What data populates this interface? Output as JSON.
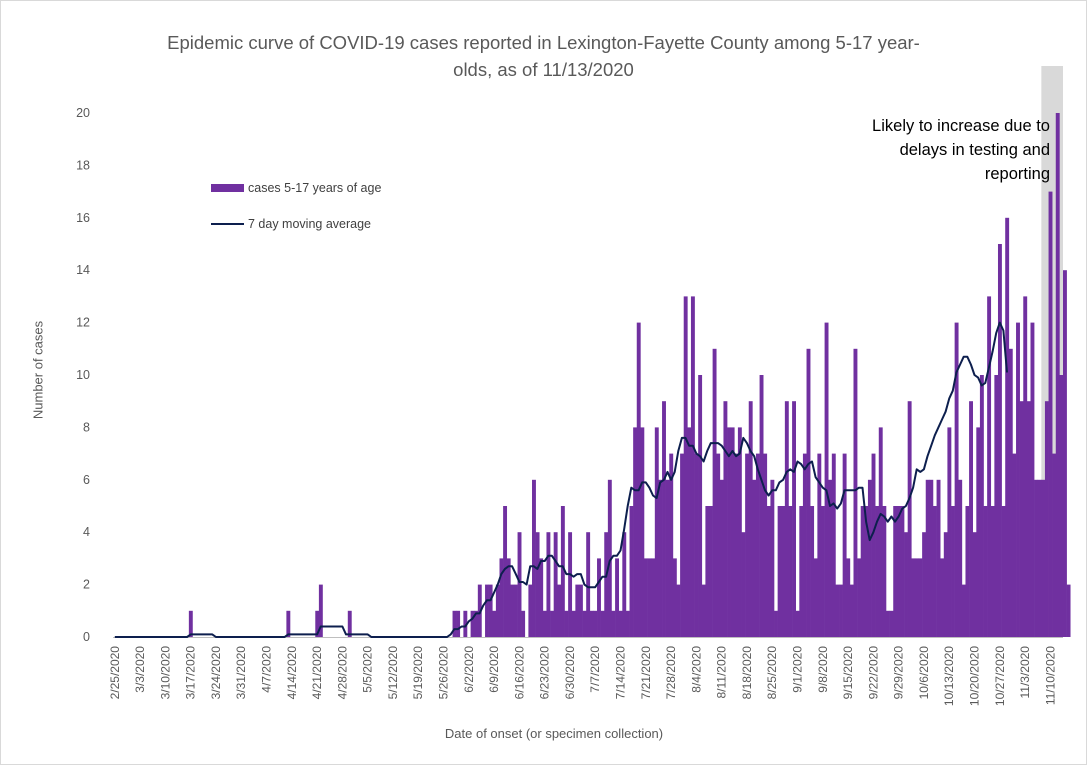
{
  "chart_data": {
    "type": "bar",
    "title_lines": [
      "Epidemic curve of COVID-19 cases reported in Lexington-Fayette County among 5-17 year-",
      "olds, as of 11/13/2020"
    ],
    "xlabel": "Date of onset (or specimen collection)",
    "ylabel": "Number of cases",
    "ylim": [
      0,
      20
    ],
    "y_ticks": [
      0,
      2,
      4,
      6,
      8,
      10,
      12,
      14,
      16,
      18,
      20
    ],
    "x_tick_labels": [
      "2/25/2020",
      "3/3/2020",
      "3/10/2020",
      "3/17/2020",
      "3/24/2020",
      "3/31/2020",
      "4/7/2020",
      "4/14/2020",
      "4/21/2020",
      "4/28/2020",
      "5/5/2020",
      "5/12/2020",
      "5/19/2020",
      "5/26/2020",
      "6/2/2020",
      "6/9/2020",
      "6/16/2020",
      "6/23/2020",
      "6/30/2020",
      "7/7/2020",
      "7/14/2020",
      "7/21/2020",
      "7/28/2020",
      "8/4/2020",
      "8/11/2020",
      "8/18/2020",
      "8/25/2020",
      "9/1/2020",
      "9/8/2020",
      "9/15/2020",
      "9/22/2020",
      "9/29/2020",
      "10/6/2020",
      "10/13/2020",
      "10/20/2020",
      "10/27/2020",
      "11/3/2020",
      "11/10/2020"
    ],
    "start_date": "2/25/2020",
    "end_date": "11/13/2020",
    "series": [
      {
        "name": "cases 5-17 years of age",
        "type": "bar",
        "color": "#7030a0",
        "values": [
          0,
          0,
          0,
          0,
          0,
          0,
          0,
          0,
          0,
          0,
          0,
          0,
          0,
          0,
          0,
          0,
          0,
          0,
          0,
          0,
          0,
          1,
          0,
          0,
          0,
          0,
          0,
          0,
          0,
          0,
          0,
          0,
          0,
          0,
          0,
          0,
          0,
          0,
          0,
          0,
          0,
          0,
          0,
          0,
          0,
          0,
          0,
          0,
          1,
          0,
          0,
          0,
          0,
          0,
          0,
          0,
          1,
          2,
          0,
          0,
          0,
          0,
          0,
          0,
          0,
          1,
          0,
          0,
          0,
          0,
          0,
          0,
          0,
          0,
          0,
          0,
          0,
          0,
          0,
          0,
          0,
          0,
          0,
          0,
          0,
          0,
          0,
          0,
          0,
          0,
          0,
          0,
          0,
          0,
          1,
          1,
          0,
          1,
          0,
          1,
          1,
          2,
          0,
          2,
          2,
          1,
          2,
          3,
          5,
          3,
          2,
          2,
          4,
          1,
          0,
          2,
          6,
          4,
          3,
          1,
          4,
          1,
          4,
          2,
          5,
          1,
          4,
          1,
          2,
          2,
          1,
          4,
          1,
          1,
          3,
          1,
          4,
          6,
          1,
          3,
          1,
          4,
          1,
          5,
          8,
          12,
          8,
          3,
          3,
          3,
          8,
          6,
          9,
          6,
          7,
          3,
          2,
          7,
          13,
          8,
          13,
          7,
          10,
          2,
          5,
          5,
          11,
          7,
          6,
          9,
          8,
          8,
          7,
          8,
          4,
          7,
          9,
          6,
          7,
          10,
          7,
          5,
          6,
          1,
          5,
          5,
          9,
          5,
          9,
          1,
          5,
          7,
          11,
          5,
          3,
          7,
          5,
          12,
          6,
          7,
          2,
          2,
          7,
          3,
          2,
          11,
          3,
          5,
          5,
          6,
          7,
          5,
          8,
          5,
          1,
          1,
          5,
          5,
          5,
          4,
          9,
          3,
          3,
          3,
          4,
          6,
          6,
          5,
          6,
          3,
          4,
          8,
          5,
          12,
          6,
          2,
          5,
          9,
          4,
          8,
          10,
          5,
          13,
          5,
          10,
          15,
          5,
          16,
          11,
          7,
          12,
          9,
          13,
          9,
          12,
          6,
          6,
          6,
          9,
          17,
          7,
          20,
          10,
          14,
          2
        ]
      },
      {
        "name": "7 day moving average",
        "type": "line",
        "color": "#0d1f4e",
        "values": [
          0,
          0,
          0,
          0,
          0,
          0,
          0,
          0,
          0,
          0,
          0,
          0,
          0,
          0,
          0,
          0,
          0,
          0,
          0,
          0,
          0,
          0.1,
          0.1,
          0.1,
          0.1,
          0.1,
          0.1,
          0.1,
          0,
          0,
          0,
          0,
          0,
          0,
          0,
          0,
          0,
          0,
          0,
          0,
          0,
          0,
          0,
          0,
          0,
          0,
          0,
          0,
          0.1,
          0.1,
          0.1,
          0.1,
          0.1,
          0.1,
          0.1,
          0.1,
          0.1,
          0.4,
          0.4,
          0.4,
          0.4,
          0.4,
          0.4,
          0.4,
          0.1,
          0.1,
          0.1,
          0.1,
          0.1,
          0.1,
          0.1,
          0,
          0,
          0,
          0,
          0,
          0,
          0,
          0,
          0,
          0,
          0,
          0,
          0,
          0,
          0,
          0,
          0,
          0,
          0,
          0,
          0,
          0,
          0.1,
          0.3,
          0.3,
          0.4,
          0.4,
          0.6,
          0.7,
          0.9,
          0.9,
          1.2,
          1.4,
          1.4,
          1.7,
          2.0,
          2.4,
          2.6,
          2.7,
          2.7,
          2.4,
          2.1,
          2.1,
          2.0,
          2.7,
          2.7,
          2.6,
          2.9,
          2.9,
          3.1,
          3.1,
          2.9,
          2.7,
          2.7,
          2.4,
          2.4,
          2.3,
          2.4,
          2.4,
          2.0,
          1.9,
          1.9,
          1.9,
          2.1,
          2.3,
          2.3,
          2.9,
          3.1,
          3.1,
          3.3,
          4.1,
          5.0,
          5.7,
          5.6,
          5.6,
          5.9,
          5.9,
          5.7,
          5.4,
          5.3,
          5.9,
          6.0,
          6.3,
          6.0,
          6.3,
          7.1,
          7.6,
          7.6,
          7.3,
          7.3,
          7.0,
          6.9,
          6.7,
          7.1,
          7.4,
          7.4,
          7.4,
          7.3,
          7.1,
          6.9,
          7.1,
          6.9,
          7.0,
          7.6,
          7.4,
          7.1,
          6.9,
          6.4,
          6.0,
          5.6,
          5.4,
          5.6,
          5.6,
          5.9,
          6.0,
          6.3,
          6.4,
          6.3,
          6.7,
          6.6,
          6.4,
          6.6,
          6.7,
          6.1,
          5.9,
          5.7,
          5.6,
          5.0,
          5.1,
          4.9,
          5.1,
          5.6,
          5.6,
          5.6,
          5.6,
          5.7,
          5.7,
          4.4,
          3.7,
          4.0,
          4.4,
          4.7,
          4.6,
          4.4,
          4.6,
          4.4,
          4.6,
          4.9,
          5.0,
          5.3,
          5.7,
          6.4,
          6.3,
          6.4,
          6.9,
          7.3,
          7.7,
          8.0,
          8.3,
          8.6,
          9.1,
          9.4,
          10.1,
          10.4,
          10.7,
          10.7,
          10.4,
          10.0,
          9.9,
          9.6,
          9.7,
          10.3,
          10.9,
          11.6,
          12.0,
          11.7,
          10.1
        ]
      }
    ],
    "annotation_lines": [
      "Likely to increase due to",
      "delays in testing and",
      "reporting"
    ],
    "shaded_region": {
      "from": "11/8/2020",
      "to": "11/13/2020",
      "color": "#d9d9d9"
    },
    "grid": false,
    "legend_position": "upper-left (inside plot)"
  }
}
